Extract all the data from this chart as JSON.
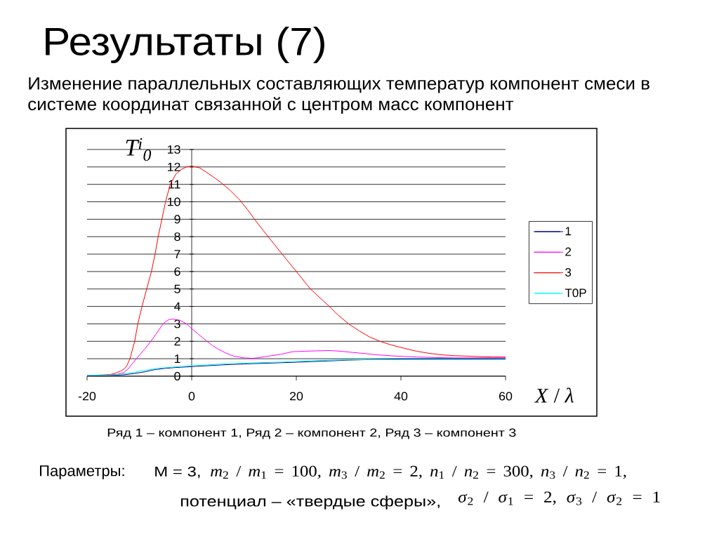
{
  "chart_data": {
    "type": "line",
    "title": "Результаты (7)",
    "subtitle": "Изменение параллельных составляющих температур компонент смеси в системе координат связанной с центром масс компонент",
    "xlabel": "*X* / *λ*",
    "ylabel": "T$^{i}$$_{0}$",
    "annotations": [
      "Ряд 1 – компонент 1, Ряд 2 – компонент 2, Ряд 3 – компонент 3",
      "Параметры:",
      "M = 3,",
      "*m*$_{2}$ / *m*$_{1}$ = 100, *m*$_{3}$ / *m*$_{2}$ = 2, *n*$_{1}$ / *n*$_{2}$ = 300, *n*$_{3}$ / *n*$_{2}$ = 1,",
      "потенциал – «твердые сферы»,",
      "*σ*$_{2}$ / *σ*$_{1}$ = 2, *σ*$_{3}$ / *σ*$_{2}$ = 1"
    ],
    "series": [
      {
        "name": "1",
        "color": "#000080",
        "x": [
          -20,
          -16,
          -13,
          -11,
          -9,
          -7,
          -5,
          -3,
          -1,
          0,
          3,
          6,
          10,
          15,
          20,
          25,
          30,
          35,
          40,
          50,
          60
        ],
        "values": [
          0.03,
          0.05,
          0.08,
          0.15,
          0.25,
          0.38,
          0.45,
          0.5,
          0.53,
          0.55,
          0.6,
          0.65,
          0.7,
          0.75,
          0.8,
          0.86,
          0.92,
          0.96,
          0.99,
          1.0,
          1.0
        ]
      },
      {
        "name": "2",
        "color": "#ff00ff",
        "x": [
          -20,
          -16,
          -14.3,
          -13,
          -12.2,
          -11.2,
          -10,
          -8.9,
          -7.8,
          -6.7,
          -5.7,
          -5.1,
          -4.3,
          -3.6,
          -2.2,
          -1,
          0,
          1.3,
          2.7,
          4,
          4.9,
          6.5,
          8,
          10,
          11.6,
          13,
          14.7,
          17,
          19.2,
          21.5,
          23.7,
          26.3,
          28.5,
          30.8,
          33,
          35.2,
          38,
          40.6,
          43,
          46.5,
          50,
          55,
          60
        ],
        "values": [
          0.05,
          0.07,
          0.1,
          0.2,
          0.4,
          0.77,
          1.2,
          1.58,
          2.0,
          2.46,
          2.9,
          3.1,
          3.25,
          3.27,
          3.2,
          3.0,
          2.73,
          2.4,
          2.05,
          1.75,
          1.58,
          1.33,
          1.15,
          1.05,
          1.02,
          1.07,
          1.15,
          1.25,
          1.4,
          1.43,
          1.45,
          1.47,
          1.43,
          1.36,
          1.3,
          1.23,
          1.17,
          1.13,
          1.1,
          1.07,
          1.05,
          1.05,
          1.05
        ]
      },
      {
        "name": "3",
        "color": "#ff0000",
        "x": [
          -20,
          -17,
          -15.5,
          -14.5,
          -13.5,
          -12.8,
          -12.4,
          -11.8,
          -10.9,
          -10.3,
          -9.5,
          -8.6,
          -7.7,
          -7.0,
          -6.4,
          -5.7,
          -5.0,
          -4.1,
          -3,
          -2,
          -1,
          0,
          1.5,
          2.8,
          4,
          5.4,
          7.2,
          9.2,
          10.8,
          12,
          14.6,
          17.3,
          20,
          22.7,
          24.5,
          26.3,
          28,
          30,
          32,
          34,
          36,
          38,
          40.6,
          43,
          45.6,
          48,
          50,
          52.5,
          55,
          57.5,
          60
        ],
        "values": [
          0.05,
          0.07,
          0.1,
          0.18,
          0.3,
          0.45,
          0.6,
          1.0,
          2.0,
          3.0,
          4.0,
          5.0,
          6.0,
          7.0,
          8.0,
          9.0,
          10.0,
          11.0,
          11.6,
          11.85,
          12.0,
          12.05,
          11.95,
          11.7,
          11.45,
          11.15,
          10.7,
          10.1,
          9.5,
          9.0,
          8.0,
          7.0,
          6.0,
          5.0,
          4.5,
          4.0,
          3.5,
          3.0,
          2.6,
          2.25,
          2.0,
          1.8,
          1.6,
          1.43,
          1.3,
          1.22,
          1.18,
          1.15,
          1.12,
          1.1,
          1.1
        ]
      },
      {
        "name": "T0P",
        "color": "#00ffff",
        "x": [
          -20,
          -16,
          -14,
          -12.5,
          -11,
          -9.8,
          -8,
          -6.25,
          -4.5,
          -3.1,
          -1.5,
          0,
          4,
          8,
          12,
          17,
          20,
          23.7,
          28,
          33.5,
          40,
          50,
          60
        ],
        "values": [
          0.05,
          0.07,
          0.1,
          0.15,
          0.22,
          0.3,
          0.38,
          0.46,
          0.5,
          0.54,
          0.57,
          0.6,
          0.67,
          0.73,
          0.77,
          0.81,
          0.85,
          0.9,
          0.93,
          0.95,
          0.95,
          0.95,
          0.95
        ]
      }
    ],
    "xlim": [
      -20,
      60
    ],
    "ylim": [
      0,
      13
    ],
    "xticks": [
      -20,
      0,
      20,
      40,
      60
    ],
    "yticks": [
      0,
      1,
      2,
      3,
      4,
      5,
      6,
      7,
      8,
      9,
      10,
      11,
      12,
      13
    ],
    "grid": "y",
    "legend": "right",
    "marker": "none",
    "line_style": "solid"
  }
}
